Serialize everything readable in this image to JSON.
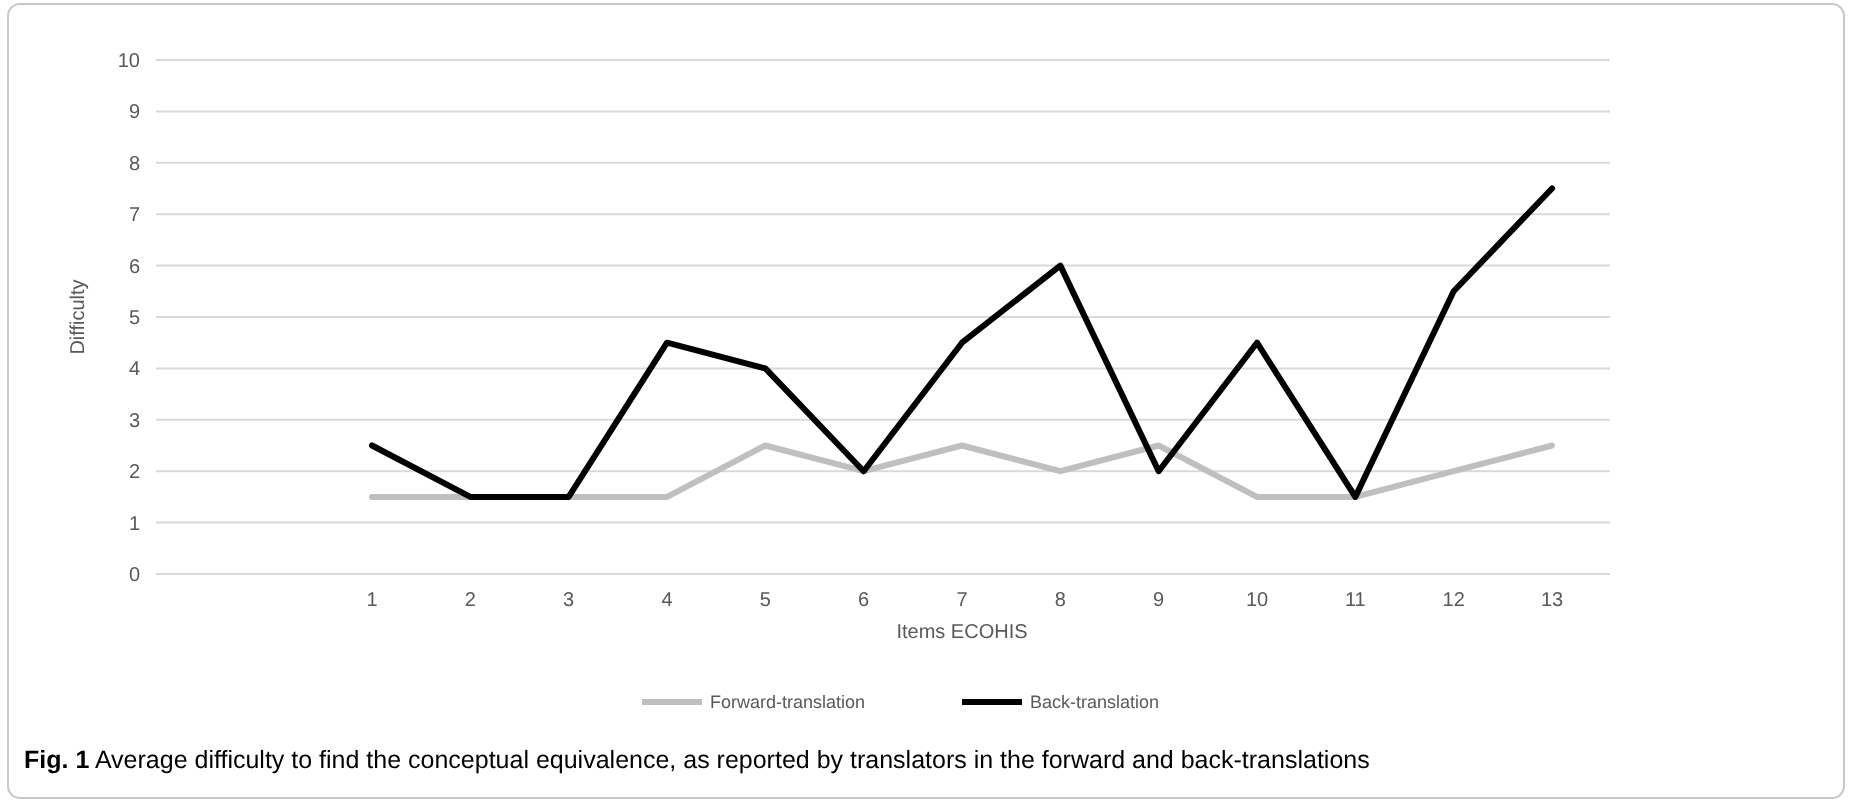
{
  "chart_data": {
    "type": "line",
    "xlabel": "Items ECOHIS",
    "ylabel": "Difficulty",
    "categories": [
      "1",
      "2",
      "3",
      "4",
      "5",
      "6",
      "7",
      "8",
      "9",
      "10",
      "11",
      "12",
      "13"
    ],
    "series": [
      {
        "name": "Forward-translation",
        "color": "#bfbfbf",
        "values": [
          1.5,
          1.5,
          1.5,
          1.5,
          2.5,
          2,
          2.5,
          2,
          2.5,
          1.5,
          1.5,
          2,
          2.5
        ]
      },
      {
        "name": "Back-translation",
        "color": "#000000",
        "values": [
          2.5,
          1.5,
          1.5,
          4.5,
          4,
          2,
          4.5,
          6,
          2,
          4.5,
          1.5,
          5.5,
          7.5
        ]
      }
    ],
    "ylim": [
      0,
      10
    ],
    "yticks": [
      0,
      1,
      2,
      3,
      4,
      5,
      6,
      7,
      8,
      9,
      10
    ],
    "grid": "y",
    "legend": "bottom",
    "marker": "none",
    "line_style": "solid",
    "annotations": [
      "Fig. 1 Average difficulty to find the conceptual equivalence, as reported by translators in the forward and back-translations"
    ]
  }
}
